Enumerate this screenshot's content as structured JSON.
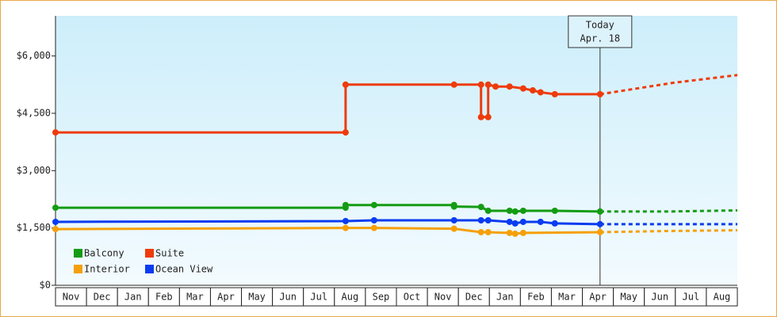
{
  "chart_data": {
    "type": "line",
    "xlim": [
      0,
      22
    ],
    "ylim": [
      0,
      7050
    ],
    "xticks": [
      {
        "value": 0.5,
        "label": "Nov"
      },
      {
        "value": 1.5,
        "label": "Dec"
      },
      {
        "value": 2.5,
        "label": "Jan"
      },
      {
        "value": 3.5,
        "label": "Feb"
      },
      {
        "value": 4.5,
        "label": "Mar"
      },
      {
        "value": 5.5,
        "label": "Apr"
      },
      {
        "value": 6.5,
        "label": "May"
      },
      {
        "value": 7.5,
        "label": "Jun"
      },
      {
        "value": 8.5,
        "label": "Jul"
      },
      {
        "value": 9.5,
        "label": "Aug"
      },
      {
        "value": 10.5,
        "label": "Sep"
      },
      {
        "value": 11.5,
        "label": "Oct"
      },
      {
        "value": 12.5,
        "label": "Nov"
      },
      {
        "value": 13.5,
        "label": "Dec"
      },
      {
        "value": 14.5,
        "label": "Jan"
      },
      {
        "value": 15.5,
        "label": "Feb"
      },
      {
        "value": 16.5,
        "label": "Mar"
      },
      {
        "value": 17.5,
        "label": "Apr"
      },
      {
        "value": 18.5,
        "label": "May"
      },
      {
        "value": 19.5,
        "label": "Jun"
      },
      {
        "value": 20.5,
        "label": "Jul"
      },
      {
        "value": 21.5,
        "label": "Aug"
      }
    ],
    "yticks": [
      {
        "value": 0,
        "label": "$0"
      },
      {
        "value": 1500,
        "label": "$1,500"
      },
      {
        "value": 3000,
        "label": "$3,000"
      },
      {
        "value": 4500,
        "label": "$4,500"
      },
      {
        "value": 6000,
        "label": "$6,000"
      }
    ],
    "annotation": {
      "x": 17.57,
      "lines": [
        "Today",
        "Apr. 18"
      ]
    },
    "series": [
      {
        "name": "Balcony",
        "color": "#139c13",
        "x": [
          0,
          9.36,
          9.36,
          10.28,
          12.86,
          12.86,
          13.73,
          13.96,
          14.65,
          14.83,
          15.09,
          16.11,
          17.57
        ],
        "values": [
          2030,
          2030,
          2100,
          2100,
          2100,
          2060,
          2050,
          1950,
          1950,
          1930,
          1950,
          1950,
          1930
        ],
        "forecast": {
          "x": [
            17.57,
            19.7,
            22
          ],
          "values": [
            1930,
            1930,
            1960
          ]
        }
      },
      {
        "name": "Suite",
        "color": "#ee3b0b",
        "x": [
          0,
          9.36,
          9.36,
          12.86,
          13.73,
          13.73,
          13.96,
          13.96,
          14.2,
          14.65,
          15.09,
          15.4,
          15.65,
          16.11,
          17.57
        ],
        "values": [
          4000,
          4000,
          5250,
          5250,
          5250,
          4400,
          4400,
          5250,
          5200,
          5200,
          5150,
          5100,
          5050,
          5000,
          5000
        ],
        "forecast": {
          "x": [
            17.57,
            19.95,
            22
          ],
          "values": [
            5000,
            5300,
            5500
          ]
        }
      },
      {
        "name": "Interior",
        "color": "#f5a00a",
        "x": [
          0,
          9.36,
          10.28,
          12.86,
          13.73,
          13.96,
          14.65,
          14.83,
          15.09,
          17.57
        ],
        "values": [
          1470,
          1500,
          1500,
          1480,
          1390,
          1390,
          1370,
          1350,
          1370,
          1390
        ],
        "forecast": {
          "x": [
            17.57,
            19.7,
            22
          ],
          "values": [
            1390,
            1420,
            1440
          ]
        }
      },
      {
        "name": "Ocean View",
        "color": "#0a3cf0",
        "x": [
          0,
          9.36,
          10.28,
          12.86,
          13.73,
          13.96,
          14.65,
          14.83,
          15.09,
          15.65,
          16.11,
          17.57
        ],
        "values": [
          1660,
          1680,
          1700,
          1700,
          1700,
          1700,
          1660,
          1620,
          1660,
          1660,
          1620,
          1600
        ],
        "forecast": {
          "x": [
            17.57,
            22
          ],
          "values": [
            1600,
            1600
          ]
        }
      }
    ]
  }
}
